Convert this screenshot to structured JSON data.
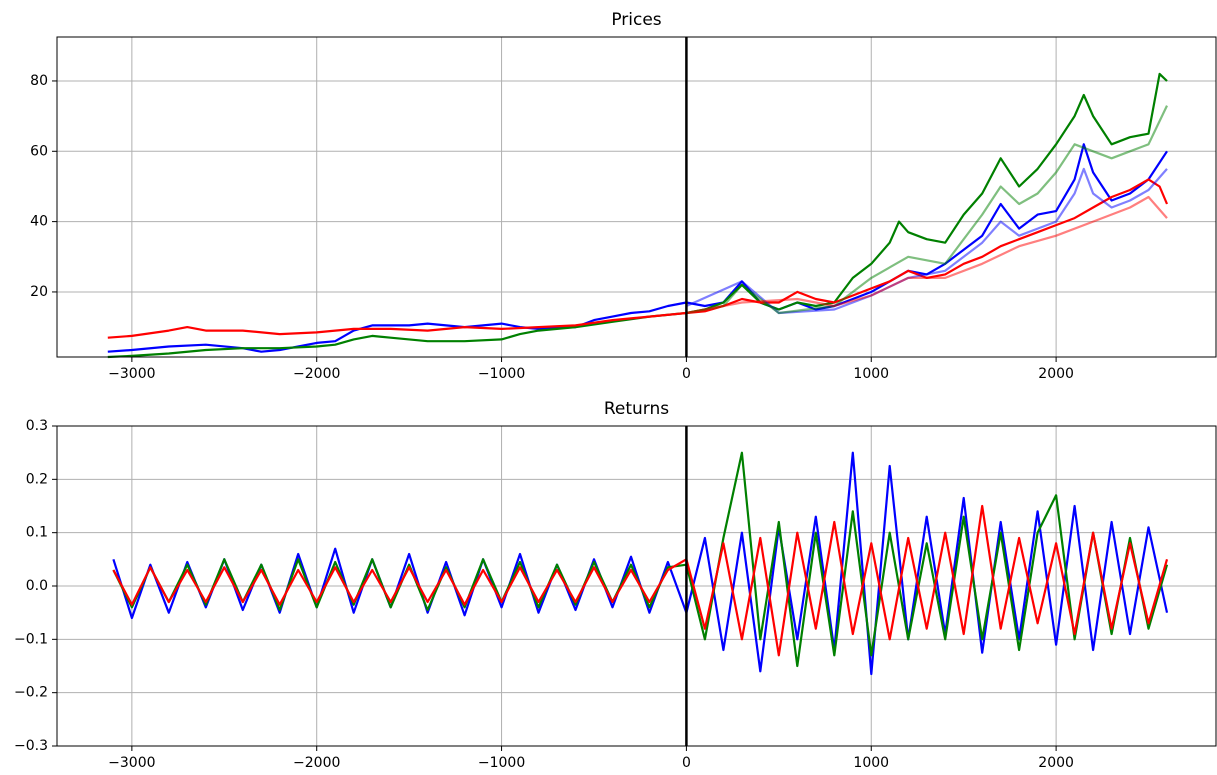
{
  "chart_data": [
    {
      "type": "line",
      "title": "Prices",
      "xlim": [
        -3405,
        2865
      ],
      "ylim": [
        1.5,
        92.5
      ],
      "xticks": [
        {
          "value": -3000,
          "label": "−3000"
        },
        {
          "value": -2000,
          "label": "−2000"
        },
        {
          "value": -1000,
          "label": "−1000"
        },
        0,
        1000,
        2000
      ],
      "yticks": [
        20,
        40,
        60,
        80
      ],
      "grid": true,
      "vline": 0,
      "vline_color": "#000000",
      "series": [
        {
          "color": "#0000ff",
          "opacity": 1,
          "x": [
            -3130,
            -3000,
            -2800,
            -2600,
            -2400,
            -2300,
            -2200,
            -2000,
            -1900,
            -1800,
            -1700,
            -1600,
            -1500,
            -1400,
            -1200,
            -1000,
            -900,
            -800,
            -600,
            -500,
            -400,
            -300,
            -200,
            -100,
            0,
            100,
            200,
            300,
            400,
            500,
            600,
            700,
            800,
            900,
            1000,
            1100,
            1200,
            1300,
            1400,
            1500,
            1600,
            1700,
            1800,
            1900,
            2000,
            2100,
            2150,
            2200,
            2300,
            2400,
            2500,
            2600
          ],
          "values": [
            3,
            3.5,
            4.5,
            5,
            4,
            3,
            3.5,
            5.5,
            6,
            9,
            10.5,
            10.5,
            10.5,
            11,
            10,
            11,
            10,
            9.5,
            10,
            12,
            13,
            14,
            14.5,
            16,
            17,
            16,
            17,
            23,
            17,
            15,
            17,
            15,
            16,
            18,
            20,
            23,
            26,
            25,
            28,
            32,
            36,
            45,
            38,
            42,
            43,
            52,
            62,
            54,
            46,
            48,
            52,
            60
          ]
        },
        {
          "color": "#008000",
          "opacity": 1,
          "x": [
            -3130,
            -3000,
            -2800,
            -2600,
            -2400,
            -2200,
            -2000,
            -1900,
            -1800,
            -1700,
            -1600,
            -1400,
            -1200,
            -1000,
            -900,
            -800,
            -600,
            -400,
            -200,
            0,
            100,
            200,
            300,
            400,
            500,
            600,
            700,
            800,
            900,
            1000,
            1100,
            1150,
            1200,
            1300,
            1400,
            1500,
            1600,
            1700,
            1800,
            1900,
            2000,
            2100,
            2150,
            2200,
            2300,
            2400,
            2500,
            2560,
            2600
          ],
          "values": [
            1.5,
            1.8,
            2.5,
            3.5,
            4,
            4,
            4.5,
            5,
            6.5,
            7.5,
            7,
            6,
            6,
            6.5,
            8,
            9,
            10,
            11.5,
            13,
            14,
            15,
            17,
            22,
            17,
            15,
            17,
            16,
            17,
            24,
            28,
            34,
            40,
            37,
            35,
            34,
            42,
            48,
            58,
            50,
            55,
            62,
            70,
            76,
            70,
            62,
            64,
            65,
            82,
            80
          ]
        },
        {
          "color": "#ff0000",
          "opacity": 1,
          "x": [
            -3130,
            -3000,
            -2800,
            -2700,
            -2600,
            -2400,
            -2200,
            -2000,
            -1800,
            -1600,
            -1400,
            -1200,
            -1000,
            -800,
            -600,
            -400,
            -200,
            0,
            100,
            200,
            300,
            400,
            500,
            600,
            700,
            800,
            900,
            1000,
            1100,
            1200,
            1300,
            1400,
            1500,
            1600,
            1700,
            1800,
            1900,
            2000,
            2100,
            2200,
            2300,
            2400,
            2500,
            2560,
            2600
          ],
          "values": [
            7,
            7.5,
            9,
            10,
            9,
            9,
            8,
            8.5,
            9.5,
            9.5,
            9,
            10,
            9.5,
            10,
            10.5,
            12,
            13,
            14,
            14.5,
            16,
            18,
            17,
            17,
            20,
            18,
            17,
            19,
            21,
            23,
            26,
            24,
            25,
            28,
            30,
            33,
            35,
            37,
            39,
            41,
            44,
            47,
            49,
            52,
            50,
            45
          ]
        },
        {
          "color": "#0000ff",
          "opacity": 0.5,
          "x": [
            0,
            300,
            500,
            800,
            1000,
            1200,
            1400,
            1600,
            1700,
            1800,
            1900,
            2000,
            2100,
            2150,
            2200,
            2300,
            2400,
            2500,
            2600
          ],
          "values": [
            16,
            23,
            14,
            15,
            19,
            24,
            26,
            34,
            40,
            36,
            38,
            40,
            48,
            55,
            48,
            44,
            46,
            49,
            55
          ]
        },
        {
          "color": "#008000",
          "opacity": 0.5,
          "x": [
            0,
            200,
            300,
            500,
            800,
            1000,
            1200,
            1400,
            1600,
            1700,
            1800,
            1900,
            2000,
            2100,
            2200,
            2300,
            2400,
            2500,
            2600
          ],
          "values": [
            14,
            16,
            22,
            14,
            16,
            24,
            30,
            28,
            42,
            50,
            45,
            48,
            54,
            62,
            60,
            58,
            60,
            62,
            73
          ]
        },
        {
          "color": "#ff0000",
          "opacity": 0.5,
          "x": [
            0,
            300,
            600,
            800,
            1000,
            1200,
            1400,
            1600,
            1800,
            2000,
            2200,
            2400,
            2500,
            2600
          ],
          "values": [
            14,
            17,
            18,
            16,
            19,
            24,
            24,
            28,
            33,
            36,
            40,
            44,
            47,
            41
          ]
        }
      ]
    },
    {
      "type": "line",
      "title": "Returns",
      "xlim": [
        -3405,
        2865
      ],
      "ylim": [
        -0.3,
        0.3
      ],
      "xticks": [
        {
          "value": -3000,
          "label": "−3000"
        },
        {
          "value": -2000,
          "label": "−2000"
        },
        {
          "value": -1000,
          "label": "−1000"
        },
        0,
        1000,
        2000
      ],
      "yticks": [
        {
          "value": -0.3,
          "label": "−0.3"
        },
        {
          "value": -0.2,
          "label": "−0.2"
        },
        {
          "value": -0.1,
          "label": "−0.1"
        },
        {
          "value": 0,
          "label": "0.0"
        },
        0.1,
        0.2,
        0.3
      ],
      "grid": true,
      "vline": 0,
      "vline_color": "#000000",
      "x": [
        -3100,
        -3000,
        -2900,
        -2800,
        -2700,
        -2600,
        -2500,
        -2400,
        -2300,
        -2200,
        -2100,
        -2000,
        -1900,
        -1800,
        -1700,
        -1600,
        -1500,
        -1400,
        -1300,
        -1200,
        -1100,
        -1000,
        -900,
        -800,
        -700,
        -600,
        -500,
        -400,
        -300,
        -200,
        -100,
        0,
        100,
        200,
        300,
        400,
        500,
        600,
        700,
        800,
        900,
        1000,
        1100,
        1200,
        1300,
        1400,
        1500,
        1600,
        1700,
        1800,
        1900,
        2000,
        2100,
        2200,
        2300,
        2400,
        2500,
        2600
      ],
      "series": [
        {
          "color": "#0000ff",
          "opacity": 1,
          "values": [
            0.05,
            -0.06,
            0.04,
            -0.05,
            0.045,
            -0.04,
            0.05,
            -0.045,
            0.04,
            -0.05,
            0.06,
            -0.04,
            0.07,
            -0.05,
            0.05,
            -0.04,
            0.06,
            -0.05,
            0.045,
            -0.055,
            0.05,
            -0.04,
            0.06,
            -0.05,
            0.04,
            -0.045,
            0.05,
            -0.04,
            0.055,
            -0.05,
            0.045,
            -0.05,
            0.09,
            -0.12,
            0.1,
            -0.16,
            0.11,
            -0.1,
            0.13,
            -0.12,
            0.25,
            -0.165,
            0.225,
            -0.1,
            0.13,
            -0.09,
            0.165,
            -0.125,
            0.12,
            -0.1,
            0.14,
            -0.11,
            0.15,
            -0.12,
            0.12,
            -0.09,
            0.11,
            -0.05
          ]
        },
        {
          "color": "#008000",
          "opacity": 1,
          "values": [
            0.03,
            -0.04,
            0.035,
            -0.03,
            0.04,
            -0.035,
            0.05,
            -0.03,
            0.04,
            -0.045,
            0.05,
            -0.04,
            0.045,
            -0.035,
            0.05,
            -0.04,
            0.04,
            -0.045,
            0.035,
            -0.04,
            0.05,
            -0.03,
            0.045,
            -0.04,
            0.04,
            -0.035,
            0.045,
            -0.03,
            0.04,
            -0.04,
            0.035,
            0.04,
            -0.1,
            0.09,
            0.25,
            -0.1,
            0.12,
            -0.15,
            0.1,
            -0.13,
            0.14,
            -0.13,
            0.1,
            -0.1,
            0.08,
            -0.1,
            0.13,
            -0.1,
            0.1,
            -0.12,
            0.1,
            0.17,
            -0.1,
            0.1,
            -0.09,
            0.09,
            -0.08,
            0.04
          ]
        },
        {
          "color": "#ff0000",
          "opacity": 1,
          "values": [
            0.03,
            -0.035,
            0.035,
            -0.03,
            0.03,
            -0.03,
            0.035,
            -0.03,
            0.03,
            -0.035,
            0.03,
            -0.03,
            0.035,
            -0.03,
            0.03,
            -0.03,
            0.035,
            -0.03,
            0.03,
            -0.035,
            0.03,
            -0.03,
            0.035,
            -0.03,
            0.03,
            -0.03,
            0.035,
            -0.03,
            0.03,
            -0.03,
            0.03,
            0.05,
            -0.08,
            0.08,
            -0.1,
            0.09,
            -0.13,
            0.1,
            -0.08,
            0.12,
            -0.09,
            0.08,
            -0.1,
            0.09,
            -0.08,
            0.1,
            -0.09,
            0.15,
            -0.08,
            0.09,
            -0.07,
            0.08,
            -0.09,
            0.1,
            -0.08,
            0.08,
            -0.07,
            0.05
          ]
        }
      ]
    }
  ]
}
